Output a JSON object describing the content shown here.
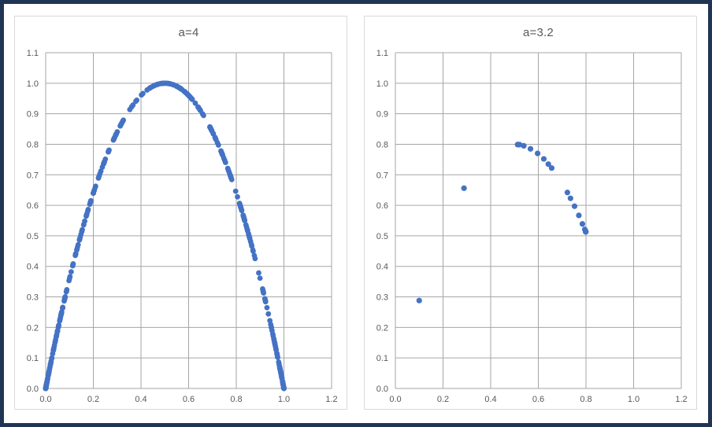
{
  "style": {
    "frame_border_color": "#1f3553",
    "panel_border_color": "#d9d9d9",
    "background_color": "#ffffff",
    "grid_color": "#a6a6a6",
    "tick_label_color": "#595959",
    "title_color": "#595959"
  },
  "chart_data": [
    {
      "type": "scatter",
      "title": "a=4",
      "xlabel": "",
      "ylabel": "",
      "legend": "none",
      "grid": true,
      "x_axis": {
        "min": 0,
        "max": 1.2,
        "step": 0.2,
        "decimals": 1
      },
      "y_axis": {
        "min": 0,
        "max": 1.1,
        "step": 0.1,
        "decimals": 1
      },
      "marker": {
        "color": "#4472c4",
        "radius": 3.4
      },
      "relation": "Return map of logistic map: points (x_n, x_n+1) with x_n+1 = 4·x_n·(1−x_n); chaotic orbit densely fills the parabola from (0,0) up to (0.5,1.0) and back to (1,0)",
      "generator": {
        "map": "logistic_return",
        "a": 4,
        "x0": 0.2,
        "n": 400
      },
      "points": []
    },
    {
      "type": "scatter",
      "title": "a=3.2",
      "xlabel": "",
      "ylabel": "",
      "legend": "none",
      "grid": true,
      "x_axis": {
        "min": 0,
        "max": 1.2,
        "step": 0.2,
        "decimals": 1
      },
      "y_axis": {
        "min": 0,
        "max": 1.1,
        "step": 0.1,
        "decimals": 1
      },
      "marker": {
        "color": "#4472c4",
        "radius": 3.6
      },
      "relation": "Return map of logistic map: points (x_n, x_n+1) with x_n+1 = 3.2·x_n·(1−x_n), x0 = 0.1; orbit converges to period-2 cycle {0.513, 0.799}",
      "generator": {
        "map": "logistic_return",
        "a": 3.2,
        "x0": 0.1,
        "n": 20
      },
      "points": [
        [
          0.1,
          0.288
        ],
        [
          0.288,
          0.656
        ],
        [
          0.656,
          0.722
        ],
        [
          0.722,
          0.642
        ],
        [
          0.642,
          0.735
        ],
        [
          0.735,
          0.623
        ],
        [
          0.623,
          0.752
        ],
        [
          0.752,
          0.597
        ],
        [
          0.597,
          0.77
        ],
        [
          0.77,
          0.567
        ],
        [
          0.567,
          0.785
        ],
        [
          0.785,
          0.539
        ],
        [
          0.539,
          0.795
        ],
        [
          0.795,
          0.521
        ],
        [
          0.521,
          0.799
        ],
        [
          0.799,
          0.515
        ],
        [
          0.515,
          0.799
        ],
        [
          0.799,
          0.513
        ],
        [
          0.513,
          0.799
        ],
        [
          0.799,
          0.513
        ]
      ]
    }
  ]
}
